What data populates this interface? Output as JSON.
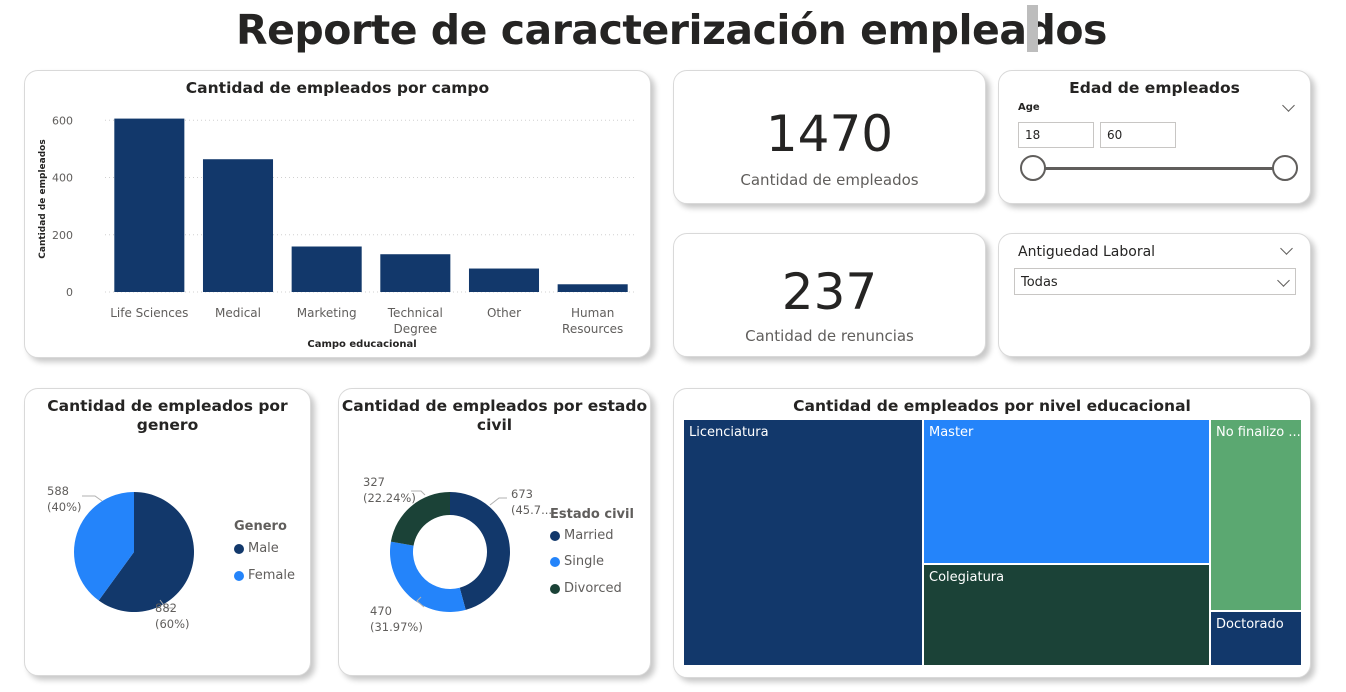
{
  "page_title": "Reporte de caracterización empleados",
  "colors": {
    "dark_blue": "#12386b",
    "blue": "#2484fa",
    "dark_green": "#1b4237",
    "green": "#5ba871"
  },
  "chart_data": [
    {
      "type": "bar",
      "title": "Cantidad de empleados por campo",
      "xlabel": "Campo educacional",
      "ylabel": "Cantidad de empleados",
      "categories": [
        "Life Sciences",
        "Medical",
        "Marketing",
        "Technical Degree",
        "Other",
        "Human Resources"
      ],
      "category_lines": [
        [
          "Life Sciences"
        ],
        [
          "Medical"
        ],
        [
          "Marketing"
        ],
        [
          "Technical",
          "Degree"
        ],
        [
          "Other"
        ],
        [
          "Human",
          "Resources"
        ]
      ],
      "values": [
        606,
        464,
        159,
        132,
        82,
        27
      ],
      "yticks": [
        0,
        200,
        400,
        600
      ],
      "ylim": [
        0,
        650
      ],
      "grid": true
    },
    {
      "type": "pie",
      "title": "Cantidad de empleados por genero",
      "title_lines": [
        "Cantidad de empleados por",
        "genero"
      ],
      "legend_title": "Genero",
      "labels": [
        "Male",
        "Female"
      ],
      "values": [
        882,
        588
      ],
      "percent_labels": [
        "(60%)",
        "(40%)"
      ],
      "colors": [
        "#12386b",
        "#2484fa"
      ],
      "legend_position": "right"
    },
    {
      "type": "pie",
      "subtype": "donut",
      "title": "Cantidad de empleados por estado civil",
      "title_lines": [
        "Cantidad de empleados por estado",
        "civil"
      ],
      "legend_title": "Estado civil",
      "labels": [
        "Married",
        "Single",
        "Divorced"
      ],
      "values": [
        673,
        470,
        327
      ],
      "percent_labels": [
        "(45.7...",
        "(31.97%)",
        "(22.24%)"
      ],
      "colors": [
        "#12386b",
        "#2484fa",
        "#1b4237"
      ],
      "legend_position": "right"
    },
    {
      "type": "treemap",
      "title": "Cantidad de empleados por nivel educacional",
      "labels": [
        "Licenciatura",
        "Master",
        "Colegiatura",
        "No finalizo ...",
        "Doctorado"
      ],
      "colors": [
        "#12386b",
        "#2484fa",
        "#1b4237",
        "#5ba871",
        "#12386b"
      ]
    }
  ],
  "kpis": [
    {
      "value": "1470",
      "label": "Cantidad de empleados"
    },
    {
      "value": "237",
      "label": "Cantidad de renuncias"
    }
  ],
  "age_slicer": {
    "title": "Edad de empleados",
    "field": "Age",
    "min": "18",
    "max": "60",
    "range": [
      18,
      60
    ]
  },
  "tenure_slicer": {
    "title": "Antiguedad Laboral",
    "selected": "Todas"
  }
}
